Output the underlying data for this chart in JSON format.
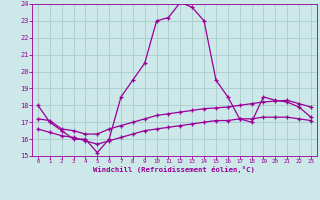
{
  "xlabel": "Windchill (Refroidissement éolien,°C)",
  "background_color": "#cce8e8",
  "grid_color": "#aacccc",
  "line_color": "#990099",
  "xlim": [
    -0.5,
    23.5
  ],
  "ylim": [
    15,
    24
  ],
  "xticks": [
    0,
    1,
    2,
    3,
    4,
    5,
    6,
    7,
    8,
    9,
    10,
    11,
    12,
    13,
    14,
    15,
    16,
    17,
    18,
    19,
    20,
    21,
    22,
    23
  ],
  "yticks": [
    15,
    16,
    17,
    18,
    19,
    20,
    21,
    22,
    23,
    24
  ],
  "line1_x": [
    0,
    1,
    2,
    3,
    4,
    5,
    6,
    7,
    8,
    9,
    10,
    11,
    12,
    13,
    14,
    15,
    16,
    17,
    18,
    19,
    20,
    21,
    22,
    23
  ],
  "line1_y": [
    18.0,
    17.0,
    16.5,
    16.0,
    16.0,
    15.2,
    16.0,
    18.5,
    19.5,
    20.5,
    23.0,
    23.2,
    24.1,
    23.8,
    23.0,
    19.5,
    18.5,
    17.2,
    17.0,
    18.5,
    18.3,
    18.2,
    17.9,
    17.3
  ],
  "line2_x": [
    0,
    1,
    2,
    3,
    4,
    5,
    6,
    7,
    8,
    9,
    10,
    11,
    12,
    13,
    14,
    15,
    16,
    17,
    18,
    19,
    20,
    21,
    22,
    23
  ],
  "line2_y": [
    17.2,
    17.1,
    16.6,
    16.5,
    16.3,
    16.3,
    16.6,
    16.8,
    17.0,
    17.2,
    17.4,
    17.5,
    17.6,
    17.7,
    17.8,
    17.85,
    17.9,
    18.0,
    18.1,
    18.2,
    18.25,
    18.3,
    18.1,
    17.9
  ],
  "line3_x": [
    0,
    1,
    2,
    3,
    4,
    5,
    6,
    7,
    8,
    9,
    10,
    11,
    12,
    13,
    14,
    15,
    16,
    17,
    18,
    19,
    20,
    21,
    22,
    23
  ],
  "line3_y": [
    16.6,
    16.4,
    16.2,
    16.1,
    15.9,
    15.7,
    15.9,
    16.1,
    16.3,
    16.5,
    16.6,
    16.7,
    16.8,
    16.9,
    17.0,
    17.1,
    17.1,
    17.2,
    17.2,
    17.3,
    17.3,
    17.3,
    17.2,
    17.1
  ]
}
